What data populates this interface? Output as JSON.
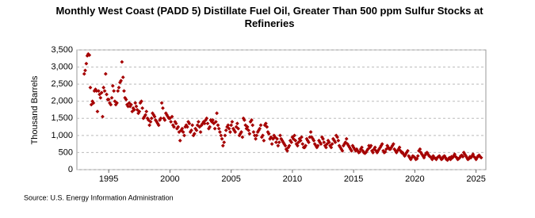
{
  "chart_data": {
    "type": "scatter",
    "title": "Monthly West Coast (PADD 5) Distillate Fuel Oil, Greater Than 500 ppm Sulfur Stocks at Refineries",
    "ylabel": "Thousand Barrels",
    "source": "Source: U.S. Energy Information Administration",
    "color": "#a50000",
    "grid": true,
    "xlim": [
      1992.4,
      2025.8
    ],
    "xticks": [
      1995,
      2000,
      2005,
      2010,
      2015,
      2020,
      2025
    ],
    "ylim": [
      0,
      3500
    ],
    "yticks": [
      0,
      500,
      {
        "value": 1000,
        "label": "1,000"
      },
      {
        "value": 1500,
        "label": "1,500"
      },
      {
        "value": 2000,
        "label": "2,000"
      },
      {
        "value": 2500,
        "label": "2,500"
      },
      {
        "value": 3000,
        "label": "3,000"
      },
      {
        "value": 3500,
        "label": "3,500"
      }
    ],
    "x": [
      1993,
      1993.08,
      1993.17,
      1993.25,
      1993.33,
      1993.42,
      1993.5,
      1993.58,
      1993.67,
      1993.75,
      1993.83,
      1993.92,
      1994,
      1994.08,
      1994.17,
      1994.25,
      1994.33,
      1994.42,
      1994.5,
      1994.58,
      1994.67,
      1994.75,
      1994.83,
      1994.92,
      1995,
      1995.08,
      1995.17,
      1995.25,
      1995.33,
      1995.42,
      1995.5,
      1995.58,
      1995.67,
      1995.75,
      1995.83,
      1995.92,
      1996,
      1996.08,
      1996.17,
      1996.25,
      1996.33,
      1996.42,
      1996.5,
      1996.58,
      1996.67,
      1996.75,
      1996.83,
      1996.92,
      1997,
      1997.08,
      1997.17,
      1997.25,
      1997.33,
      1997.42,
      1997.5,
      1997.58,
      1997.67,
      1997.75,
      1997.83,
      1997.92,
      1998,
      1998.08,
      1998.17,
      1998.25,
      1998.33,
      1998.42,
      1998.5,
      1998.58,
      1998.67,
      1998.75,
      1998.83,
      1998.92,
      1999,
      1999.08,
      1999.17,
      1999.25,
      1999.33,
      1999.42,
      1999.5,
      1999.58,
      1999.67,
      1999.75,
      1999.83,
      1999.92,
      2000,
      2000.08,
      2000.17,
      2000.25,
      2000.33,
      2000.42,
      2000.5,
      2000.58,
      2000.67,
      2000.75,
      2000.83,
      2000.92,
      2001,
      2001.08,
      2001.17,
      2001.25,
      2001.33,
      2001.42,
      2001.5,
      2001.58,
      2001.67,
      2001.75,
      2001.83,
      2001.92,
      2002,
      2002.08,
      2002.17,
      2002.25,
      2002.33,
      2002.42,
      2002.5,
      2002.58,
      2002.67,
      2002.75,
      2002.83,
      2002.92,
      2003,
      2003.08,
      2003.17,
      2003.25,
      2003.33,
      2003.42,
      2003.5,
      2003.58,
      2003.67,
      2003.75,
      2003.83,
      2003.92,
      2004,
      2004.08,
      2004.17,
      2004.25,
      2004.33,
      2004.42,
      2004.5,
      2004.58,
      2004.67,
      2004.75,
      2004.83,
      2004.92,
      2005,
      2005.08,
      2005.17,
      2005.25,
      2005.33,
      2005.42,
      2005.5,
      2005.58,
      2005.67,
      2005.75,
      2005.83,
      2005.92,
      2006,
      2006.08,
      2006.17,
      2006.25,
      2006.33,
      2006.42,
      2006.5,
      2006.58,
      2006.67,
      2006.75,
      2006.83,
      2006.92,
      2007,
      2007.08,
      2007.17,
      2007.25,
      2007.33,
      2007.42,
      2007.5,
      2007.58,
      2007.67,
      2007.75,
      2007.83,
      2007.92,
      2008,
      2008.08,
      2008.17,
      2008.25,
      2008.33,
      2008.42,
      2008.5,
      2008.58,
      2008.67,
      2008.75,
      2008.83,
      2008.92,
      2009,
      2009.08,
      2009.17,
      2009.25,
      2009.33,
      2009.42,
      2009.5,
      2009.58,
      2009.67,
      2009.75,
      2009.83,
      2009.92,
      2010,
      2010.08,
      2010.17,
      2010.25,
      2010.33,
      2010.42,
      2010.5,
      2010.58,
      2010.67,
      2010.75,
      2010.83,
      2010.92,
      2011,
      2011.08,
      2011.17,
      2011.25,
      2011.33,
      2011.42,
      2011.5,
      2011.58,
      2011.67,
      2011.75,
      2011.83,
      2011.92,
      2012,
      2012.08,
      2012.17,
      2012.25,
      2012.33,
      2012.42,
      2012.5,
      2012.58,
      2012.67,
      2012.75,
      2012.83,
      2012.92,
      2013,
      2013.08,
      2013.17,
      2013.25,
      2013.33,
      2013.42,
      2013.5,
      2013.58,
      2013.67,
      2013.75,
      2013.83,
      2013.92,
      2014,
      2014.08,
      2014.17,
      2014.25,
      2014.33,
      2014.42,
      2014.5,
      2014.58,
      2014.67,
      2014.75,
      2014.83,
      2014.92,
      2015,
      2015.08,
      2015.17,
      2015.25,
      2015.33,
      2015.42,
      2015.5,
      2015.58,
      2015.67,
      2015.75,
      2015.83,
      2015.92,
      2016,
      2016.08,
      2016.17,
      2016.25,
      2016.33,
      2016.42,
      2016.5,
      2016.58,
      2016.67,
      2016.75,
      2016.83,
      2016.92,
      2017,
      2017.08,
      2017.17,
      2017.25,
      2017.33,
      2017.42,
      2017.5,
      2017.58,
      2017.67,
      2017.75,
      2017.83,
      2017.92,
      2018,
      2018.08,
      2018.17,
      2018.25,
      2018.33,
      2018.42,
      2018.5,
      2018.58,
      2018.67,
      2018.75,
      2018.83,
      2018.92,
      2019,
      2019.08,
      2019.17,
      2019.25,
      2019.33,
      2019.42,
      2019.5,
      2019.58,
      2019.67,
      2019.75,
      2019.83,
      2019.92,
      2020,
      2020.08,
      2020.17,
      2020.25,
      2020.33,
      2020.42,
      2020.5,
      2020.58,
      2020.67,
      2020.75,
      2020.83,
      2020.92,
      2021,
      2021.08,
      2021.17,
      2021.25,
      2021.33,
      2021.42,
      2021.5,
      2021.58,
      2021.67,
      2021.75,
      2021.83,
      2021.92,
      2022,
      2022.08,
      2022.17,
      2022.25,
      2022.33,
      2022.42,
      2022.5,
      2022.58,
      2022.67,
      2022.75,
      2022.83,
      2022.92,
      2023,
      2023.08,
      2023.17,
      2023.25,
      2023.33,
      2023.42,
      2023.5,
      2023.58,
      2023.67,
      2023.75,
      2023.83,
      2023.92,
      2024,
      2024.08,
      2024.17,
      2024.25,
      2024.33,
      2024.42,
      2024.5,
      2024.58,
      2024.67,
      2024.75,
      2024.83,
      2024.92,
      2025,
      2025.08,
      2025.17,
      2025.25,
      2025.33,
      2025.42
    ],
    "values": [
      2800,
      2900,
      3100,
      3330,
      3380,
      3350,
      2400,
      1900,
      2000,
      1950,
      2300,
      2350,
      2300,
      1700,
      2300,
      2200,
      2100,
      2250,
      1550,
      2400,
      2300,
      2800,
      2200,
      2050,
      2050,
      1950,
      1900,
      2100,
      2450,
      2300,
      2000,
      1900,
      1950,
      2300,
      2400,
      2550,
      2600,
      3150,
      2700,
      2300,
      2100,
      2050,
      1900,
      1850,
      1950,
      1850,
      1900,
      1700,
      1800,
      1750,
      1950,
      1850,
      1750,
      1650,
      1700,
      1950,
      2000,
      1800,
      1500,
      1550,
      1600,
      1700,
      1500,
      1450,
      1300,
      1400,
      1500,
      1650,
      1600,
      1550,
      1450,
      1400,
      1350,
      1300,
      1450,
      1500,
      1950,
      1800,
      1500,
      1450,
      1650,
      1600,
      1550,
      1500,
      1500,
      1400,
      1550,
      1300,
      1250,
      1400,
      1350,
      1200,
      1250,
      1100,
      850,
      1150,
      1200,
      1100,
      1000,
      1250,
      1300,
      1250,
      1400,
      1350,
      1100,
      1150,
      1300,
      1000,
      1050,
      1200,
      1150,
      1300,
      1400,
      1250,
      1100,
      1300,
      1350,
      1400,
      1350,
      1450,
      1500,
      1350,
      1200,
      1250,
      1450,
      1400,
      1450,
      1350,
      1200,
      1400,
      1650,
      1300,
      1200,
      1100,
      1000,
      900,
      700,
      800,
      1000,
      1150,
      1250,
      1300,
      1200,
      1100,
      1300,
      1400,
      1200,
      1150,
      1100,
      1250,
      1350,
      1200,
      1000,
      1050,
      1100,
      950,
      1500,
      1450,
      1300,
      1200,
      1250,
      1150,
      1050,
      1400,
      1450,
      1300,
      1100,
      1000,
      900,
      1000,
      1100,
      1150,
      1200,
      1300,
      950,
      1000,
      850,
      1300,
      1350,
      1250,
      1100,
      1050,
      900,
      950,
      750,
      900,
      1000,
      950,
      800,
      900,
      700,
      800,
      1000,
      900,
      850,
      800,
      750,
      700,
      600,
      550,
      650,
      700,
      850,
      800,
      950,
      900,
      1000,
      850,
      750,
      700,
      800,
      900,
      850,
      950,
      750,
      650,
      650,
      700,
      900,
      850,
      800,
      950,
      1100,
      950,
      900,
      850,
      750,
      700,
      650,
      700,
      850,
      800,
      750,
      950,
      900,
      800,
      700,
      650,
      750,
      850,
      800,
      700,
      650,
      750,
      900,
      850,
      800,
      1000,
      950,
      850,
      700,
      650,
      600,
      550,
      700,
      750,
      800,
      900,
      750,
      700,
      650,
      600,
      550,
      700,
      650,
      600,
      550,
      600,
      550,
      500,
      520,
      600,
      650,
      550,
      500,
      480,
      500,
      550,
      600,
      700,
      650,
      700,
      550,
      500,
      600,
      650,
      550,
      500,
      550,
      600,
      650,
      700,
      750,
      550,
      500,
      520,
      600,
      700,
      650,
      600,
      600,
      650,
      700,
      750,
      600,
      550,
      500,
      550,
      600,
      650,
      550,
      500,
      500,
      450,
      400,
      450,
      500,
      550,
      400,
      350,
      300,
      350,
      400,
      380,
      350,
      300,
      320,
      400,
      550,
      600,
      500,
      450,
      400,
      350,
      420,
      480,
      500,
      450,
      400,
      380,
      350,
      300,
      400,
      350,
      330,
      300,
      350,
      380,
      400,
      350,
      300,
      320,
      380,
      400,
      350,
      300,
      280,
      320,
      350,
      300,
      380,
      350,
      400,
      450,
      380,
      350,
      300,
      320,
      350,
      400,
      420,
      380,
      500,
      450,
      400,
      350,
      300,
      320,
      380,
      350,
      400,
      450,
      380,
      350,
      300,
      350,
      400,
      420,
      380,
      350
    ]
  }
}
